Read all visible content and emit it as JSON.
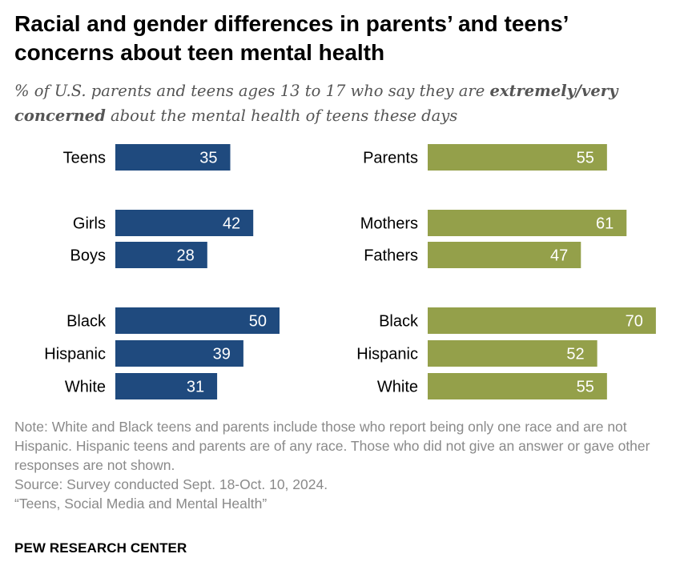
{
  "title": "Racial and gender differences in parents’ and teens’ concerns about teen mental health",
  "subtitle": {
    "pre": "% of U.S. parents and teens ages 13 to 17 who say they are ",
    "bold": "extremely/very concerned",
    "post": " about the mental health of teens these days"
  },
  "chart_data": [
    {
      "type": "bar",
      "categories": [
        "Teens",
        "Girls",
        "Boys",
        "Black",
        "Hispanic",
        "White"
      ],
      "values": [
        35,
        42,
        28,
        50,
        39,
        31
      ],
      "color": "#1f4a7e"
    },
    {
      "type": "bar",
      "categories": [
        "Parents",
        "Mothers",
        "Fathers",
        "Black",
        "Hispanic",
        "White"
      ],
      "values": [
        55,
        61,
        47,
        70,
        52,
        55
      ],
      "color": "#94a04a"
    }
  ],
  "notes": {
    "note": "Note: White and Black teens and parents include those who report being only one race and are not Hispanic. Hispanic teens and parents are of any race. Those who did not give an answer or gave other responses are not shown.",
    "source": "Source: Survey conducted Sept. 18-Oct. 10, 2024.",
    "report": "“Teens, Social Media and Mental Health”"
  },
  "brand": "PEW RESEARCH CENTER"
}
